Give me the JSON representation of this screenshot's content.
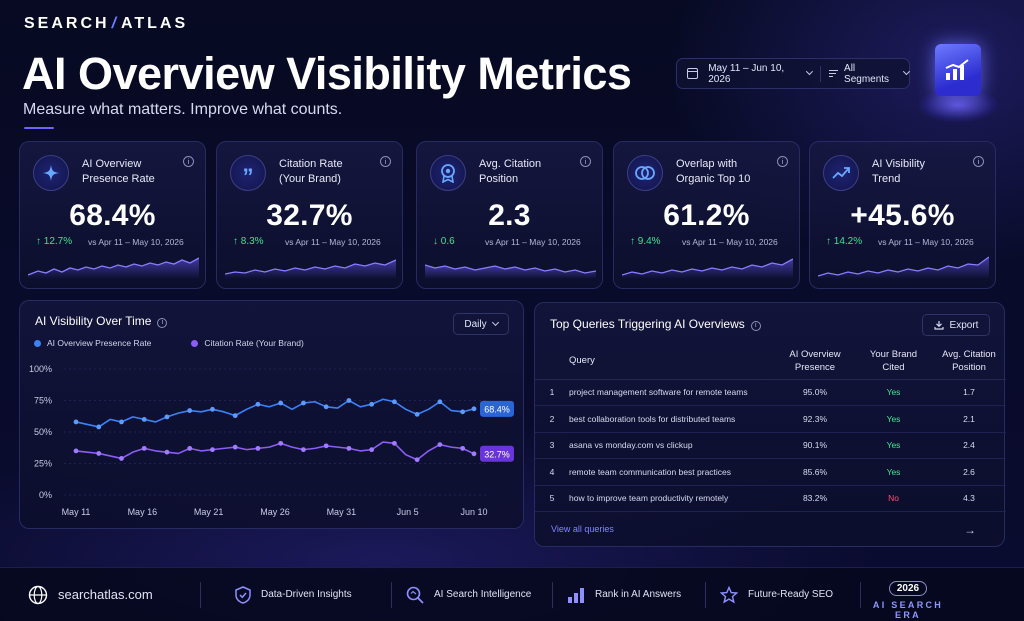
{
  "brand": {
    "left": "SEARCH",
    "sep": "/",
    "right": "ATLAS"
  },
  "header": {
    "title": "AI Overview Visibility Metrics",
    "subtitle": "Measure what matters. Improve what counts.",
    "date_range": "May 11 – Jun 10, 2026",
    "segments": "All Segments"
  },
  "cards": [
    {
      "label_1": "AI Overview",
      "label_2": "Presence Rate",
      "value": "68.4%",
      "change": "↑ 12.7%",
      "compare": "vs Apr 11 – May 10, 2026",
      "icon": "sparkle-icon"
    },
    {
      "label_1": "Citation Rate",
      "label_2": "(Your Brand)",
      "value": "32.7%",
      "change": "↑ 8.3%",
      "compare": "vs Apr 11 – May 10, 2026",
      "icon": "quote-icon"
    },
    {
      "label_1": "Avg. Citation",
      "label_2": "Position",
      "value": "2.3",
      "change": "↓ 0.6",
      "compare": "vs Apr 11 – May 10, 2026",
      "icon": "award-icon"
    },
    {
      "label_1": "Overlap with",
      "label_2": "Organic Top 10",
      "value": "61.2%",
      "change": "↑ 9.4%",
      "compare": "vs Apr 11 – May 10, 2026",
      "icon": "overlap-circles-icon"
    },
    {
      "label_1": "AI Visibility",
      "label_2": "Trend",
      "value": "+45.6%",
      "change": "↑ 14.2%",
      "compare": "vs Apr 11 – May 10, 2026",
      "icon": "trend-up-icon"
    }
  ],
  "visibility_panel": {
    "title": "AI Visibility Over Time",
    "granularity": "Daily"
  },
  "chart_data": {
    "type": "line",
    "title": "AI Visibility Over Time",
    "x_ticks": [
      "May 11",
      "May 16",
      "May 21",
      "May 26",
      "May 31",
      "Jun 5",
      "Jun 10"
    ],
    "y_ticks": [
      "100%",
      "75%",
      "50%",
      "25%",
      "0%"
    ],
    "ylim": [
      0,
      100
    ],
    "series": [
      {
        "name": "AI Overview Presence Rate",
        "color": "#3b82f6",
        "end_label": "68.4%",
        "values": [
          58,
          56,
          54,
          60,
          58,
          62,
          60,
          58,
          62,
          65,
          67,
          66,
          68,
          66,
          63,
          68,
          72,
          70,
          73,
          68,
          73,
          74,
          70,
          69,
          75,
          70,
          72,
          76,
          74,
          68,
          64,
          68,
          74,
          67,
          66,
          68.4
        ]
      },
      {
        "name": "Citation Rate (Your Brand)",
        "color": "#8b5cf6",
        "end_label": "32.7%",
        "values": [
          35,
          34,
          33,
          31,
          29,
          34,
          37,
          35,
          34,
          33,
          37,
          35,
          36,
          37,
          38,
          36,
          37,
          38,
          41,
          38,
          36,
          37,
          39,
          38,
          37,
          35,
          36,
          42,
          41,
          32,
          28,
          35,
          40,
          38,
          37,
          32.7
        ]
      }
    ]
  },
  "queries_panel": {
    "title": "Top Queries Triggering AI Overviews",
    "export": "Export",
    "headers": {
      "query": "Query",
      "presence_1": "AI Overview",
      "presence_2": "Presence",
      "cited_1": "Your Brand",
      "cited_2": "Cited",
      "pos_1": "Avg. Citation",
      "pos_2": "Position"
    },
    "rows": [
      {
        "rank": "1",
        "query": "project management software for remote teams",
        "presence": "95.0%",
        "cited": "Yes",
        "position": "1.7"
      },
      {
        "rank": "2",
        "query": "best collaboration tools for distributed teams",
        "presence": "92.3%",
        "cited": "Yes",
        "position": "2.1"
      },
      {
        "rank": "3",
        "query": "asana vs monday.com vs clickup",
        "presence": "90.1%",
        "cited": "Yes",
        "position": "2.4"
      },
      {
        "rank": "4",
        "query": "remote team communication best practices",
        "presence": "85.6%",
        "cited": "Yes",
        "position": "2.6"
      },
      {
        "rank": "5",
        "query": "how to improve team productivity remotely",
        "presence": "83.2%",
        "cited": "No",
        "position": "4.3"
      }
    ],
    "view_all": "View all queries"
  },
  "footer": {
    "site": "searchatlas.com",
    "items": [
      "Data-Driven Insights",
      "AI Search Intelligence",
      "Rank in AI Answers",
      "Future-Ready SEO"
    ],
    "year": "2026",
    "era": "AI SEARCH ERA"
  }
}
